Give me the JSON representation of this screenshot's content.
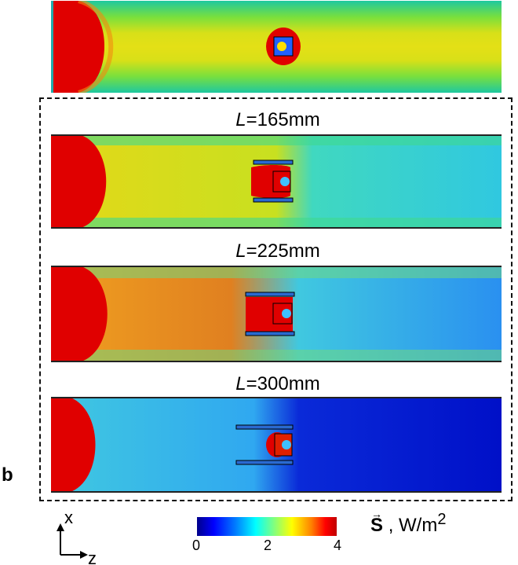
{
  "figure_label": "b",
  "panels": {
    "p1": {
      "var": "L",
      "value": "=165mm"
    },
    "p2": {
      "var": "L",
      "value": "=225mm"
    },
    "p3": {
      "var": "L",
      "value": "=300mm"
    }
  },
  "colorbar": {
    "ticks": [
      "0",
      "2",
      "4"
    ],
    "quantity": "S",
    "unit": ", W/m",
    "unit_exp": "2",
    "colors": [
      "#00008b",
      "#0000ff",
      "#00ffff",
      "#ffff00",
      "#ff0000"
    ]
  },
  "axes": {
    "vertical": "x",
    "horizontal": "z"
  }
}
